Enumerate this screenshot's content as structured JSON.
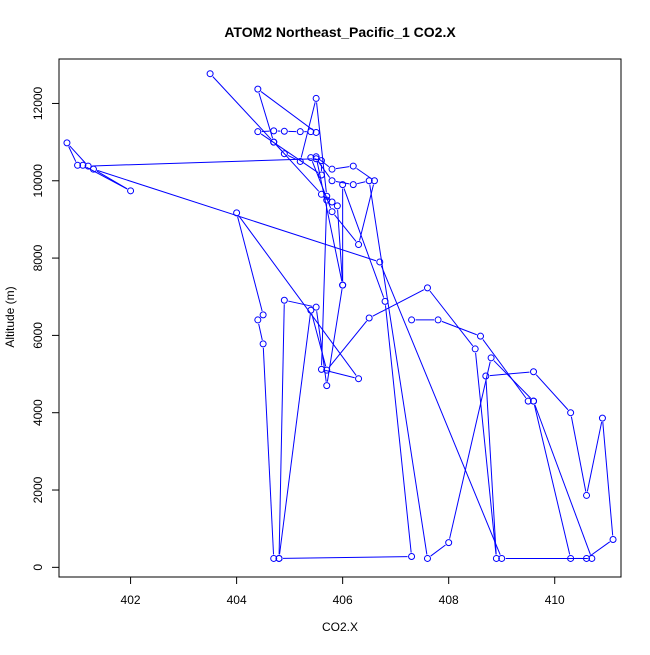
{
  "chart_data": {
    "type": "line",
    "title": "ATOM2 Northeast_Pacific_1 CO2.X",
    "xlabel": "CO2.X",
    "ylabel": "Altitude (m)",
    "xlim": [
      400.65,
      411.25
    ],
    "ylim": [
      -250,
      13150
    ],
    "xticks": [
      402,
      404,
      406,
      408,
      410
    ],
    "yticks": [
      0,
      2000,
      4000,
      6000,
      8000,
      10000,
      12000
    ],
    "colors": {
      "series": "#0000ff",
      "axis": "#000000",
      "background": "#ffffff"
    },
    "markers": "open-circle",
    "grid": false,
    "series": [
      {
        "x": [
          403.5,
          404.7,
          405.6,
          405.8,
          405.9,
          406.0,
          405.5,
          405.8,
          406.2,
          406.6,
          406.3,
          405.8,
          405.4,
          405.6,
          405.6,
          404.4,
          404.7,
          404.9,
          405.2,
          405.4,
          405.5,
          404.4,
          404.7,
          404.9,
          405.2,
          405.5,
          405.7,
          405.7,
          405.6,
          406.3,
          404.0,
          404.5,
          404.4,
          404.5,
          404.7,
          404.8,
          404.9,
          405.5,
          405.7,
          406.0,
          406.0,
          406.8,
          407.3,
          404.8,
          405.4,
          405.7,
          406.5,
          407.6,
          408.5,
          408.9,
          408.7,
          409.6,
          410.3,
          410.6,
          410.9,
          411.1,
          410.6,
          410.3,
          409.6,
          408.8,
          408.0,
          407.6,
          406.5,
          406.2,
          405.8,
          405.5,
          401.2,
          400.8,
          401.0,
          401.1,
          402.0,
          401.3,
          406.7,
          409.0,
          410.7,
          409.6,
          409.5,
          408.6,
          407.8,
          407.3
        ],
        "y": [
          12770,
          11000,
          9650,
          9450,
          9350,
          7300,
          10620,
          10300,
          10380,
          10000,
          8350,
          9200,
          10600,
          10520,
          10150,
          11270,
          11290,
          11280,
          11270,
          11270,
          11250,
          12370,
          11000,
          10700,
          10500,
          12130,
          9600,
          9500,
          5120,
          4880,
          9170,
          6530,
          6400,
          5780,
          230,
          230,
          6910,
          6730,
          4700,
          7300,
          9900,
          6880,
          280,
          230,
          6650,
          5100,
          6450,
          7230,
          5650,
          230,
          4950,
          5060,
          4000,
          1860,
          3860,
          720,
          230,
          230,
          4300,
          5420,
          640,
          230,
          10000,
          9900,
          10000,
          10570,
          10380,
          10980,
          10400,
          10400,
          9740,
          10300,
          7900,
          230,
          230,
          4300,
          4300,
          5980,
          6400,
          6400
        ]
      }
    ]
  }
}
